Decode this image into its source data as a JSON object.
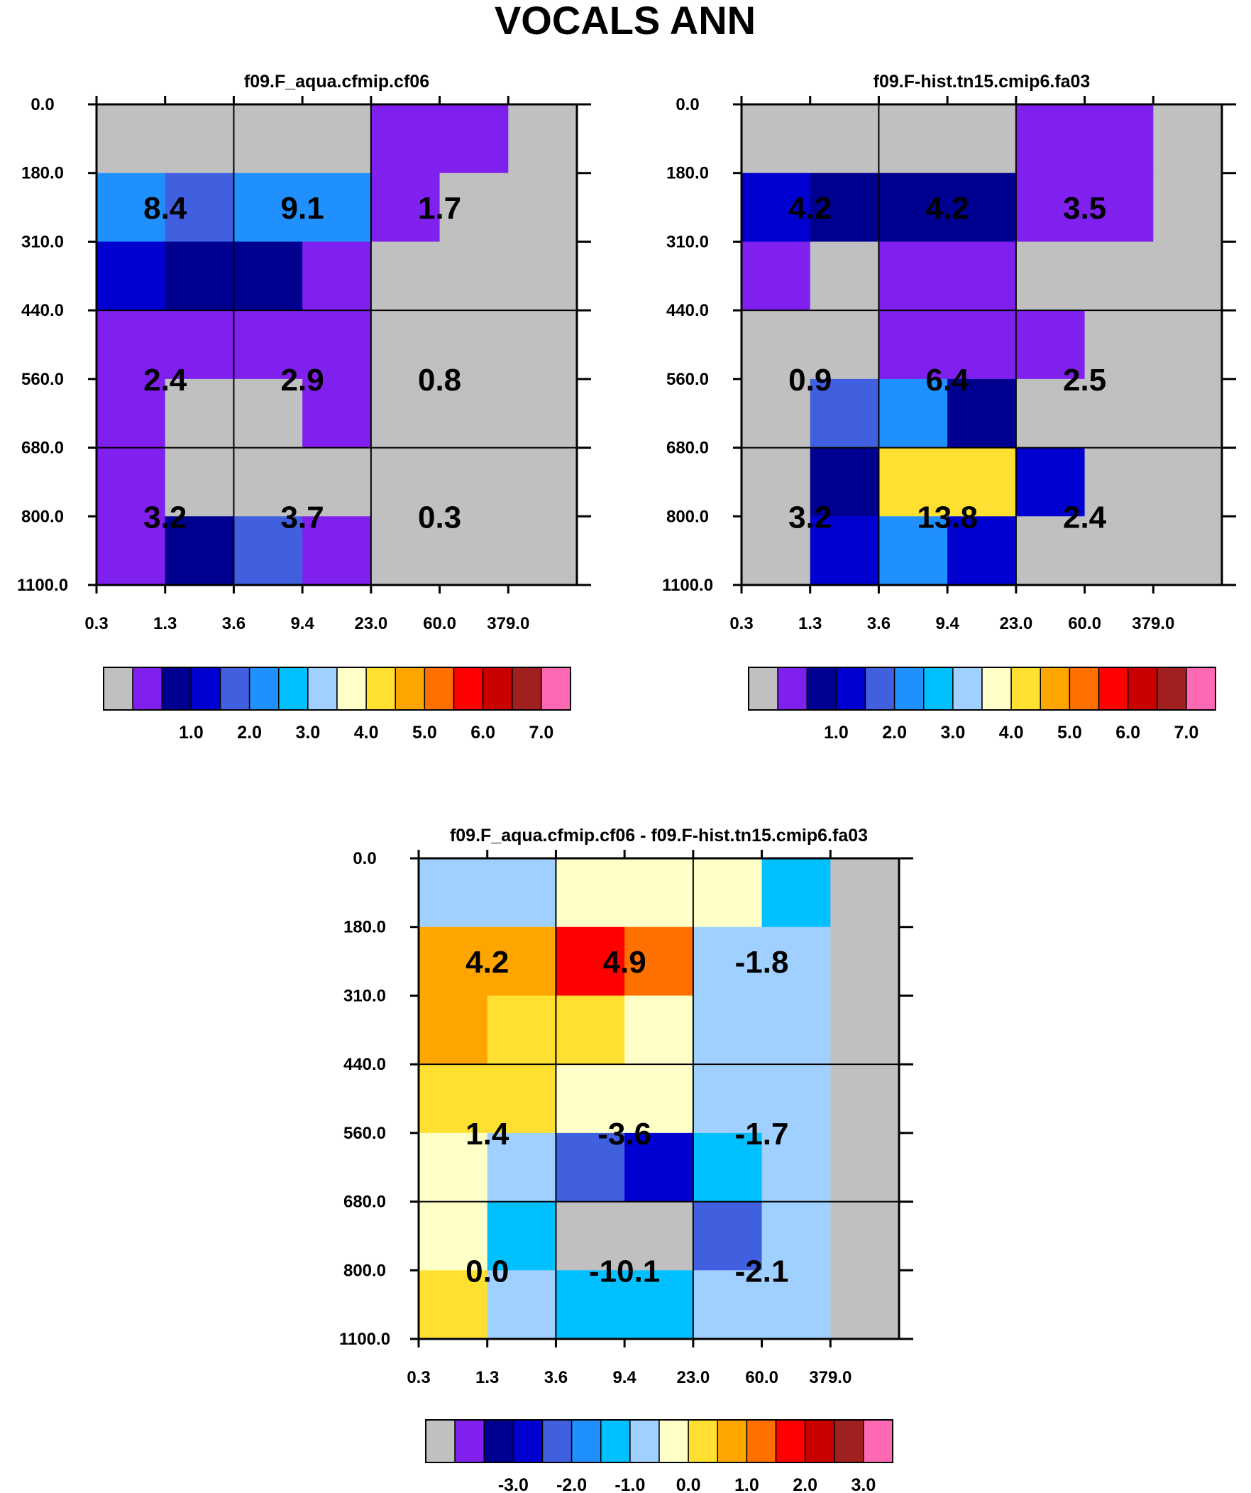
{
  "figure_title": "VOCALS ANN",
  "chart_data": [
    {
      "type": "heatmap",
      "title": "f09.F_aqua.cfmip.cf06",
      "x_ticks": [
        "0.3",
        "1.3",
        "3.6",
        "9.4",
        "23.0",
        "60.0",
        "379.0"
      ],
      "y_ticks": [
        "0.0",
        "180.0",
        "310.0",
        "440.0",
        "560.0",
        "680.0",
        "800.0",
        "1100.0"
      ],
      "cells": [
        [
          0,
          0,
          0,
          0,
          1,
          1,
          0
        ],
        [
          5,
          4,
          5,
          5,
          1,
          0,
          0
        ],
        [
          3,
          2,
          2,
          1,
          0,
          0,
          0
        ],
        [
          1,
          1,
          1,
          1,
          0,
          0,
          0
        ],
        [
          1,
          0,
          0,
          1,
          0,
          0,
          0
        ],
        [
          1,
          0,
          0,
          0,
          0,
          0,
          0
        ],
        [
          1,
          2,
          4,
          1,
          0,
          0,
          0
        ]
      ],
      "block_values": [
        [
          "8.4",
          "9.1",
          "1.7"
        ],
        [
          "2.4",
          "2.9",
          "0.8"
        ],
        [
          "3.2",
          "3.7",
          "0.3"
        ]
      ],
      "colorbar_colors": [
        "#c0c0c0",
        "#8020ee",
        "#000090",
        "#0000d0",
        "#4060e0",
        "#2090ff",
        "#00c0ff",
        "#a0d0ff",
        "#ffffc8",
        "#ffe030",
        "#ffa500",
        "#ff7000",
        "#ff0000",
        "#c80000",
        "#a02020",
        "#ff69b4"
      ],
      "colorbar_labels": [
        "1.0",
        "2.0",
        "3.0",
        "4.0",
        "5.0",
        "6.0",
        "7.0"
      ]
    },
    {
      "type": "heatmap",
      "title": "f09.F-hist.tn15.cmip6.fa03",
      "x_ticks": [
        "0.3",
        "1.3",
        "3.6",
        "9.4",
        "23.0",
        "60.0",
        "379.0"
      ],
      "y_ticks": [
        "0.0",
        "180.0",
        "310.0",
        "440.0",
        "560.0",
        "680.0",
        "800.0",
        "1100.0"
      ],
      "cells": [
        [
          0,
          0,
          0,
          0,
          1,
          1,
          0
        ],
        [
          3,
          2,
          2,
          2,
          1,
          1,
          0
        ],
        [
          1,
          0,
          1,
          1,
          0,
          0,
          0
        ],
        [
          0,
          0,
          1,
          1,
          1,
          0,
          0
        ],
        [
          0,
          4,
          5,
          2,
          0,
          0,
          0
        ],
        [
          0,
          2,
          9,
          9,
          3,
          0,
          0
        ],
        [
          0,
          3,
          5,
          3,
          0,
          0,
          0
        ]
      ],
      "block_values": [
        [
          "4.2",
          "4.2",
          "3.5"
        ],
        [
          "0.9",
          "6.4",
          "2.5"
        ],
        [
          "3.2",
          "13.8",
          "2.4"
        ]
      ],
      "colorbar_colors": [
        "#c0c0c0",
        "#8020ee",
        "#000090",
        "#0000d0",
        "#4060e0",
        "#2090ff",
        "#00c0ff",
        "#a0d0ff",
        "#ffffc8",
        "#ffe030",
        "#ffa500",
        "#ff7000",
        "#ff0000",
        "#c80000",
        "#a02020",
        "#ff69b4"
      ],
      "colorbar_labels": [
        "1.0",
        "2.0",
        "3.0",
        "4.0",
        "5.0",
        "6.0",
        "7.0"
      ]
    },
    {
      "type": "heatmap",
      "title": "f09.F_aqua.cfmip.cf06 - f09.F-hist.tn15.cmip6.fa03",
      "x_ticks": [
        "0.3",
        "1.3",
        "3.6",
        "9.4",
        "23.0",
        "60.0",
        "379.0"
      ],
      "y_ticks": [
        "0.0",
        "180.0",
        "310.0",
        "440.0",
        "560.0",
        "680.0",
        "800.0",
        "1100.0"
      ],
      "cells": [
        [
          7,
          7,
          8,
          8,
          8,
          6,
          0
        ],
        [
          10,
          10,
          12,
          11,
          7,
          7,
          0
        ],
        [
          10,
          9,
          9,
          8,
          7,
          7,
          0
        ],
        [
          9,
          9,
          8,
          8,
          7,
          7,
          0
        ],
        [
          8,
          7,
          4,
          3,
          6,
          7,
          0
        ],
        [
          8,
          6,
          0,
          0,
          4,
          7,
          0
        ],
        [
          9,
          7,
          6,
          6,
          7,
          7,
          0
        ]
      ],
      "block_values": [
        [
          "4.2",
          "4.9",
          "-1.8"
        ],
        [
          "1.4",
          "-3.6",
          "-1.7"
        ],
        [
          "0.0",
          "-10.1",
          "-2.1"
        ]
      ],
      "colorbar_colors": [
        "#c0c0c0",
        "#8020ee",
        "#000090",
        "#0000d0",
        "#4060e0",
        "#2090ff",
        "#00c0ff",
        "#a0d0ff",
        "#ffffc8",
        "#ffe030",
        "#ffa500",
        "#ff7000",
        "#ff0000",
        "#c80000",
        "#a02020",
        "#ff69b4"
      ],
      "colorbar_labels": [
        "-3.0",
        "-2.0",
        "-1.0",
        "0.0",
        "1.0",
        "2.0",
        "3.0"
      ]
    }
  ]
}
